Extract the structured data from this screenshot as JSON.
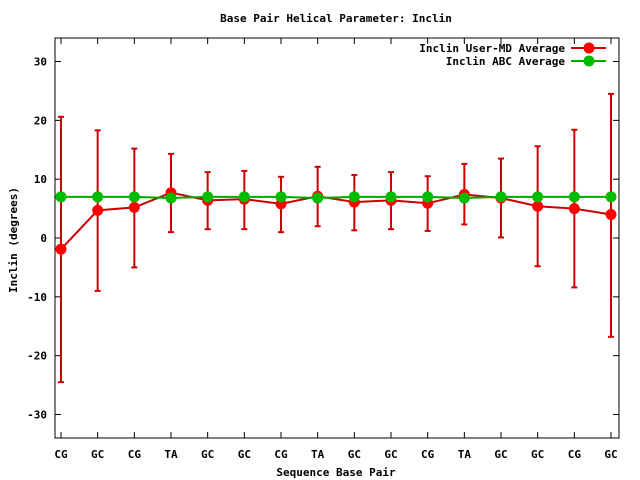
{
  "chart_data": {
    "type": "line",
    "title": "Base Pair Helical Parameter: Inclin",
    "xlabel": "Sequence Base Pair",
    "ylabel": "Inclin (degrees)",
    "categories": [
      "CG",
      "GC",
      "CG",
      "TA",
      "GC",
      "GC",
      "CG",
      "TA",
      "GC",
      "GC",
      "CG",
      "TA",
      "GC",
      "GC",
      "CG",
      "GC"
    ],
    "ylim": [
      -34,
      34
    ],
    "yticks": [
      -30,
      -20,
      -10,
      0,
      10,
      20,
      30
    ],
    "grid": false,
    "legend_position": "top-right",
    "series": [
      {
        "name": "Inclin User-MD Average",
        "color": "#ff0000",
        "line_color": "#cc0000",
        "values": [
          -1.9,
          4.7,
          5.2,
          7.7,
          6.4,
          6.6,
          5.8,
          7.1,
          6.1,
          6.4,
          5.9,
          7.4,
          6.8,
          5.4,
          5.0,
          4.0
        ],
        "error_low": [
          -24.5,
          -9.0,
          -5.0,
          1.0,
          1.5,
          1.5,
          1.0,
          2.0,
          1.3,
          1.5,
          1.2,
          2.3,
          0.1,
          -4.8,
          -8.4,
          -16.8
        ],
        "error_high": [
          20.6,
          18.3,
          15.2,
          14.3,
          11.2,
          11.4,
          10.4,
          12.1,
          10.7,
          11.2,
          10.5,
          12.6,
          13.5,
          15.6,
          18.4,
          24.5
        ]
      },
      {
        "name": "Inclin ABC Average",
        "color": "#00bb00",
        "line_color": "#00aa00",
        "values": [
          7.0,
          7.0,
          7.0,
          6.8,
          7.0,
          7.0,
          7.0,
          6.8,
          7.0,
          7.0,
          7.0,
          6.8,
          7.0,
          7.0,
          7.0,
          7.0
        ]
      }
    ]
  }
}
